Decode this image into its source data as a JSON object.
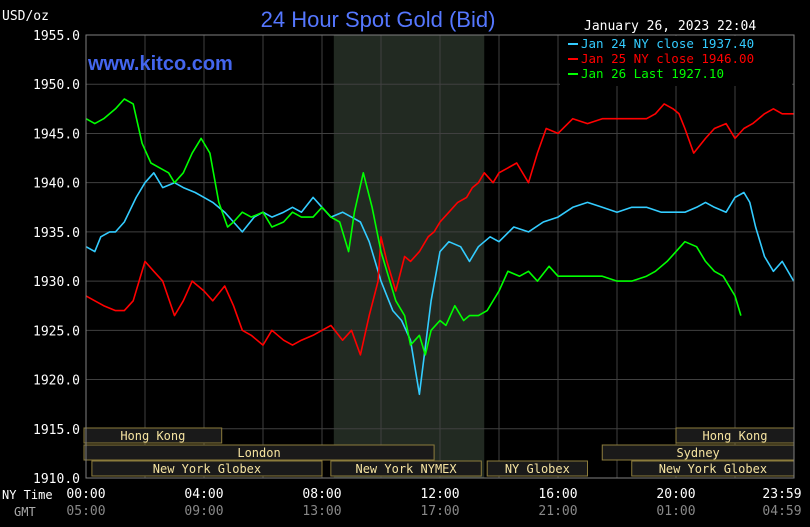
{
  "chart_data": {
    "type": "line",
    "title": "24 Hour Spot Gold (Bid)",
    "unit_label": "USD/oz",
    "watermark": "www.kitco.com",
    "timestamp": "January 26, 2023 22:04",
    "ylim": [
      1910.0,
      1955.0
    ],
    "y_ticks": [
      "1955.0",
      "1950.0",
      "1945.0",
      "1940.0",
      "1935.0",
      "1930.0",
      "1925.0",
      "1920.0",
      "1915.0",
      "1910.0"
    ],
    "xlim": [
      0,
      24
    ],
    "x_ticks_ny": [
      "00:00",
      "04:00",
      "08:00",
      "12:00",
      "16:00",
      "20:00",
      "23:59"
    ],
    "x_ticks_gmt": [
      "05:00",
      "09:00",
      "13:00",
      "17:00",
      "21:00",
      "01:00",
      "04:59"
    ],
    "row_label_ny": "NY Time",
    "row_label_gmt": "GMT",
    "grid": true,
    "shaded_session_hours": [
      8.4,
      13.5
    ],
    "legend_position": "top-right",
    "series": [
      {
        "name": "Jan 24 NY close 1937.40",
        "color": "#33CCFF",
        "x": [
          0,
          0.3,
          0.5,
          0.8,
          1.0,
          1.3,
          1.7,
          2.0,
          2.3,
          2.6,
          3.0,
          3.3,
          3.7,
          4.0,
          4.3,
          4.7,
          5.0,
          5.3,
          5.7,
          6.0,
          6.3,
          6.7,
          7.0,
          7.3,
          7.7,
          8.0,
          8.3,
          8.7,
          9.0,
          9.3,
          9.6,
          9.9,
          10.0,
          10.2,
          10.4,
          10.7,
          11.0,
          11.3,
          11.7,
          12.0,
          12.3,
          12.7,
          13.0,
          13.3,
          13.7,
          14.0,
          14.5,
          15.0,
          15.5,
          16.0,
          16.5,
          17.0,
          17.5,
          18.0,
          18.5,
          19.0,
          19.5,
          20.0,
          20.3,
          20.7,
          21.0,
          21.3,
          21.7,
          22.0,
          22.3,
          22.5,
          22.7,
          23.0,
          23.3,
          23.6,
          23.99
        ],
        "y": [
          1933.5,
          1933.0,
          1934.5,
          1935.0,
          1935.0,
          1936.0,
          1938.5,
          1940.0,
          1941.0,
          1939.5,
          1940.0,
          1939.5,
          1939.0,
          1938.5,
          1938.0,
          1937.0,
          1936.0,
          1935.0,
          1936.5,
          1937.0,
          1936.5,
          1937.0,
          1937.5,
          1937.0,
          1938.5,
          1937.5,
          1936.5,
          1937.0,
          1936.5,
          1936.0,
          1934.0,
          1931.0,
          1930.0,
          1928.5,
          1927.0,
          1926.0,
          1924.0,
          1918.5,
          1928.0,
          1933.0,
          1934.0,
          1933.5,
          1932.0,
          1933.5,
          1934.5,
          1934.0,
          1935.5,
          1935.0,
          1936.0,
          1936.5,
          1937.5,
          1938.0,
          1937.5,
          1937.0,
          1937.5,
          1937.5,
          1937.0,
          1937.0,
          1937.0,
          1937.5,
          1938.0,
          1937.5,
          1937.0,
          1938.5,
          1939.0,
          1938.0,
          1935.5,
          1932.5,
          1931.0,
          1932.0,
          1930.0
        ]
      },
      {
        "name": "Jan 25 NY close 1946.00",
        "color": "#FF0000",
        "x": [
          0,
          0.3,
          0.6,
          1.0,
          1.3,
          1.6,
          2.0,
          2.3,
          2.6,
          3.0,
          3.3,
          3.6,
          4.0,
          4.3,
          4.7,
          5.0,
          5.3,
          5.6,
          6.0,
          6.3,
          6.7,
          7.0,
          7.3,
          7.7,
          8.0,
          8.3,
          8.7,
          9.0,
          9.3,
          9.6,
          9.9,
          10.0,
          10.2,
          10.5,
          10.8,
          11.0,
          11.3,
          11.6,
          11.8,
          12.0,
          12.3,
          12.6,
          12.9,
          13.1,
          13.3,
          13.5,
          13.8,
          14.0,
          14.3,
          14.6,
          15.0,
          15.3,
          15.6,
          16.0,
          16.5,
          17.0,
          17.5,
          18.0,
          18.5,
          19.0,
          19.3,
          19.6,
          19.9,
          20.1,
          20.3,
          20.6,
          21.0,
          21.3,
          21.7,
          22.0,
          22.3,
          22.6,
          23.0,
          23.3,
          23.6,
          23.99
        ],
        "y": [
          1928.5,
          1928.0,
          1927.5,
          1927.0,
          1927.0,
          1928.0,
          1932.0,
          1931.0,
          1930.0,
          1926.5,
          1928.0,
          1930.0,
          1929.0,
          1928.0,
          1929.5,
          1927.5,
          1925.0,
          1924.5,
          1923.5,
          1925.0,
          1924.0,
          1923.5,
          1924.0,
          1924.5,
          1925.0,
          1925.5,
          1924.0,
          1925.0,
          1922.5,
          1926.5,
          1930.0,
          1934.5,
          1932.0,
          1929.0,
          1932.5,
          1932.0,
          1933.0,
          1934.5,
          1935.0,
          1936.0,
          1937.0,
          1938.0,
          1938.5,
          1939.5,
          1940.0,
          1941.0,
          1940.0,
          1941.0,
          1941.5,
          1942.0,
          1940.0,
          1943.0,
          1945.5,
          1945.0,
          1946.5,
          1946.0,
          1946.5,
          1946.5,
          1946.5,
          1946.5,
          1947.0,
          1948.0,
          1947.5,
          1947.0,
          1945.5,
          1943.0,
          1944.5,
          1945.5,
          1946.0,
          1944.5,
          1945.5,
          1946.0,
          1947.0,
          1947.5,
          1947.0,
          1947.0
        ]
      },
      {
        "name": "Jan 26 Last 1927.10",
        "color": "#00FF00",
        "x": [
          0,
          0.3,
          0.6,
          1.0,
          1.3,
          1.6,
          1.9,
          2.2,
          2.5,
          2.8,
          3.0,
          3.3,
          3.6,
          3.9,
          4.2,
          4.5,
          4.8,
          5.0,
          5.3,
          5.6,
          6.0,
          6.3,
          6.7,
          7.0,
          7.3,
          7.7,
          8.0,
          8.3,
          8.6,
          8.9,
          9.1,
          9.4,
          9.7,
          10.0,
          10.2,
          10.5,
          10.8,
          11.0,
          11.3,
          11.5,
          11.7,
          12.0,
          12.2,
          12.5,
          12.8,
          13.0,
          13.3,
          13.6,
          14.0,
          14.3,
          14.7,
          15.0,
          15.3,
          15.7,
          16.0,
          16.5,
          17.0,
          17.5,
          18.0,
          18.5,
          19.0,
          19.3,
          19.7,
          20.0,
          20.3,
          20.7,
          21.0,
          21.3,
          21.6,
          22.0,
          22.2
        ],
        "y": [
          1946.5,
          1946.0,
          1946.5,
          1947.5,
          1948.5,
          1948.0,
          1944.0,
          1942.0,
          1941.5,
          1941.0,
          1940.0,
          1941.0,
          1943.0,
          1944.5,
          1943.0,
          1938.0,
          1935.5,
          1936.0,
          1937.0,
          1936.5,
          1937.0,
          1935.5,
          1936.0,
          1937.0,
          1936.5,
          1936.5,
          1937.5,
          1936.5,
          1936.0,
          1933.0,
          1937.0,
          1941.0,
          1937.5,
          1933.0,
          1931.0,
          1928.0,
          1926.5,
          1923.5,
          1924.5,
          1922.5,
          1925.0,
          1926.0,
          1925.5,
          1927.5,
          1926.0,
          1926.5,
          1926.5,
          1927.0,
          1929.0,
          1931.0,
          1930.5,
          1931.0,
          1930.0,
          1931.5,
          1930.5,
          1930.5,
          1930.5,
          1930.5,
          1930.0,
          1930.0,
          1930.5,
          1931.0,
          1932.0,
          1933.0,
          1934.0,
          1933.5,
          1932.0,
          1931.0,
          1930.5,
          1928.5,
          1926.5
        ]
      }
    ],
    "sessions": [
      {
        "label": "Hong Kong",
        "row": 0,
        "start": -0.6,
        "end": 4.6
      },
      {
        "label": "Hong Kong",
        "row": 0,
        "start": 20.0,
        "end": 24.0
      },
      {
        "label": "London",
        "row": 1,
        "start": -0.6,
        "end": 11.8
      },
      {
        "label": "Sydney",
        "row": 1,
        "start": 17.5,
        "end": 24.0
      },
      {
        "label": "New York Globex",
        "row": 2,
        "start": 0.2,
        "end": 8.0
      },
      {
        "label": "New York NYMEX",
        "row": 2,
        "start": 8.3,
        "end": 13.4
      },
      {
        "label": "NY Globex",
        "row": 2,
        "start": 13.6,
        "end": 17.0
      },
      {
        "label": "New York Globex",
        "row": 2,
        "start": 18.5,
        "end": 24.0
      }
    ]
  },
  "colors": {
    "background": "#000000",
    "grid": "#404040",
    "frame": "#808080",
    "title": "#5577FF",
    "watermark": "#4466EE",
    "axis_text": "#FFFFFF",
    "shaded_session": "#222A22",
    "session_box": "#1A1A1A",
    "session_border": "#8C7C3C",
    "session_text": "#F5E3A0"
  }
}
